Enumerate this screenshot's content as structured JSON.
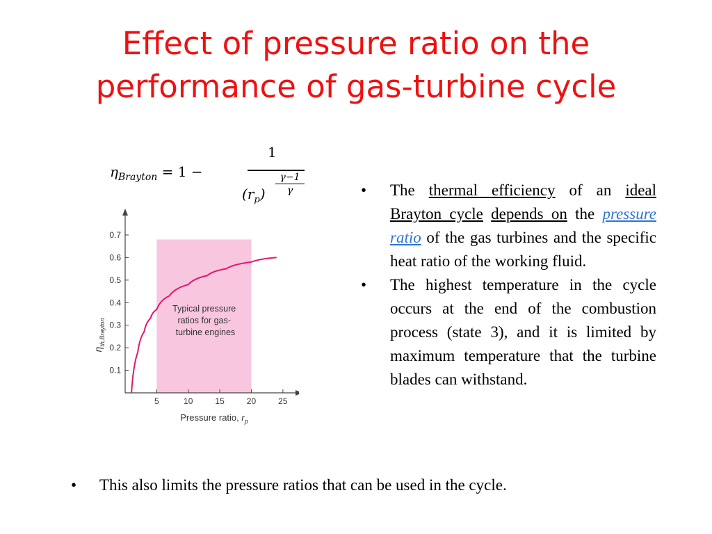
{
  "slide": {
    "title_line1": "Effect of pressure ratio on the",
    "title_line2": "performance of gas-turbine cycle"
  },
  "formula": {
    "lhs_symbol": "η",
    "lhs_subscript": "Brayton",
    "equals_one_minus": "= 1 −",
    "numerator": "1",
    "denominator_base": "r",
    "denominator_subscript": "p",
    "exponent_numerator": "γ−1",
    "exponent_denominator": "γ"
  },
  "bullets": {
    "b1": {
      "dot": "•",
      "p1": "The ",
      "u1": "thermal efficiency",
      "p2": " of an ",
      "u2": "ideal Brayton cycle",
      "p3": " ",
      "u3": "depends on",
      "p4": " the ",
      "link": "pressure ratio",
      "p5": " of the gas turbines and the specific heat ratio of the working fluid."
    },
    "b2": {
      "dot": "•",
      "text": "The highest temperature in the cycle occurs at the end of the combustion process (state 3), and it is limited by maximum temperature that the turbine blades can withstand."
    },
    "b3": {
      "dot": "•",
      "text": "This also limits the pressure ratios that can be used in the cycle."
    }
  },
  "chart_data": {
    "type": "line",
    "ylabel_main": "η",
    "ylabel_sub": "th,Brayton",
    "xlabel_main": "Pressure ratio, ",
    "xlabel_var": "r",
    "xlabel_sub": "p",
    "xticks": [
      5,
      10,
      15,
      20,
      25
    ],
    "yticks": [
      0.1,
      0.2,
      0.3,
      0.4,
      0.5,
      0.6,
      0.7
    ],
    "xlim": [
      0,
      27
    ],
    "ylim": [
      0,
      0.78
    ],
    "shaded_region": {
      "x_range": [
        5,
        20
      ],
      "label_lines": [
        "Typical pressure",
        "ratios for gas-",
        "turbine engines"
      ],
      "color": "#f8c6de"
    },
    "series": [
      {
        "color": "#e0176f",
        "x": [
          1,
          2,
          3,
          4,
          5,
          7,
          10,
          13,
          16,
          20,
          24
        ],
        "y": [
          0.0,
          0.18,
          0.27,
          0.33,
          0.37,
          0.43,
          0.48,
          0.52,
          0.55,
          0.58,
          0.6
        ]
      }
    ],
    "grid": false
  },
  "colors": {
    "title": "#ee1111",
    "link": "#2e74d6",
    "curve": "#e0176f",
    "shade": "#f8c6de"
  }
}
